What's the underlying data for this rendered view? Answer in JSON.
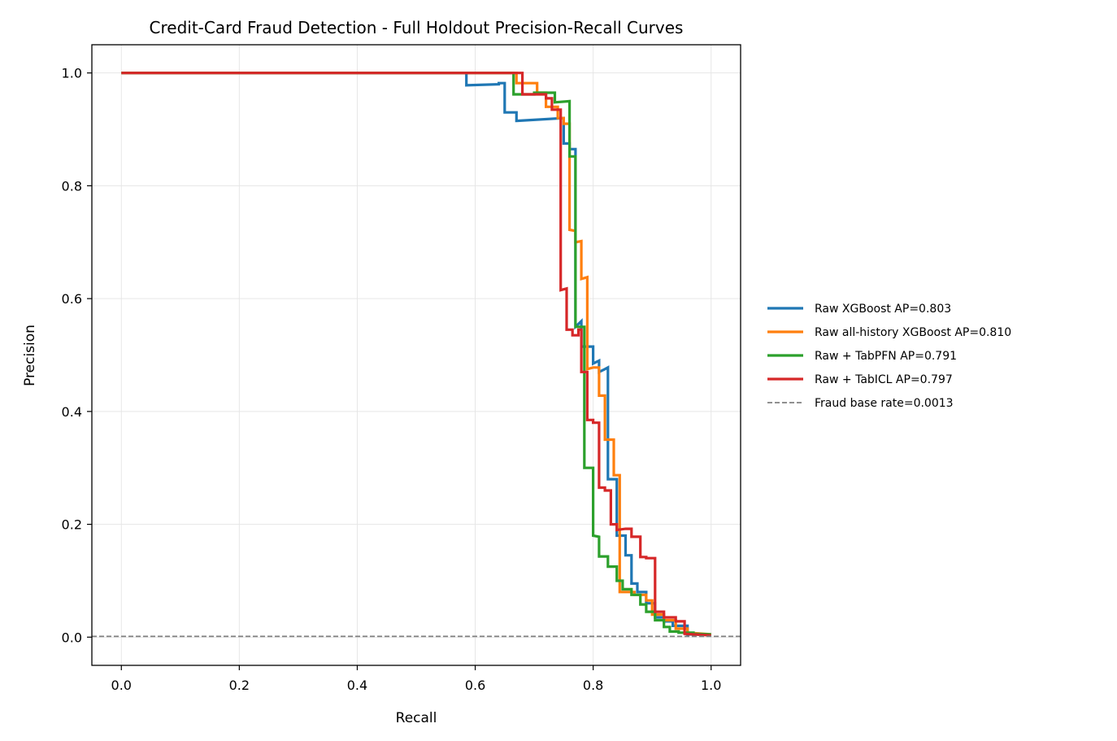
{
  "chart_data": {
    "type": "line",
    "title": "Credit-Card Fraud Detection - Full Holdout Precision-Recall Curves",
    "xlabel": "Recall",
    "ylabel": "Precision",
    "xlim": [
      -0.05,
      1.05
    ],
    "ylim": [
      -0.05,
      1.05
    ],
    "xticks": [
      0.0,
      0.2,
      0.4,
      0.6,
      0.8,
      1.0
    ],
    "yticks": [
      0.0,
      0.2,
      0.4,
      0.6,
      0.8,
      1.0
    ],
    "xtick_labels": [
      "0.0",
      "0.2",
      "0.4",
      "0.6",
      "0.8",
      "1.0"
    ],
    "ytick_labels": [
      "0.0",
      "0.2",
      "0.4",
      "0.6",
      "0.8",
      "1.0"
    ],
    "grid": true,
    "legend_position": "outside-right",
    "series": [
      {
        "name": "Raw XGBoost AP=0.803",
        "color": "#1f77b4",
        "points": [
          [
            0,
            1.0
          ],
          [
            0.585,
            1.0
          ],
          [
            0.585,
            0.978
          ],
          [
            0.64,
            0.98
          ],
          [
            0.64,
            0.982
          ],
          [
            0.65,
            0.982
          ],
          [
            0.65,
            0.93
          ],
          [
            0.67,
            0.93
          ],
          [
            0.67,
            0.915
          ],
          [
            0.75,
            0.92
          ],
          [
            0.75,
            0.875
          ],
          [
            0.76,
            0.875
          ],
          [
            0.76,
            0.865
          ],
          [
            0.77,
            0.865
          ],
          [
            0.77,
            0.55
          ],
          [
            0.78,
            0.56
          ],
          [
            0.78,
            0.515
          ],
          [
            0.8,
            0.515
          ],
          [
            0.8,
            0.485
          ],
          [
            0.81,
            0.49
          ],
          [
            0.81,
            0.47
          ],
          [
            0.82,
            0.475
          ],
          [
            0.825,
            0.478
          ],
          [
            0.825,
            0.28
          ],
          [
            0.84,
            0.28
          ],
          [
            0.84,
            0.18
          ],
          [
            0.855,
            0.18
          ],
          [
            0.855,
            0.145
          ],
          [
            0.865,
            0.145
          ],
          [
            0.865,
            0.095
          ],
          [
            0.875,
            0.095
          ],
          [
            0.875,
            0.08
          ],
          [
            0.89,
            0.08
          ],
          [
            0.89,
            0.06
          ],
          [
            0.905,
            0.06
          ],
          [
            0.905,
            0.035
          ],
          [
            0.92,
            0.035
          ],
          [
            0.92,
            0.028
          ],
          [
            0.935,
            0.028
          ],
          [
            0.935,
            0.02
          ],
          [
            0.96,
            0.02
          ],
          [
            0.96,
            0.005
          ],
          [
            1.0,
            0.004
          ]
        ]
      },
      {
        "name": "Raw all-history XGBoost AP=0.810",
        "color": "#ff7f0e",
        "points": [
          [
            0,
            1.0
          ],
          [
            0.67,
            1.0
          ],
          [
            0.67,
            0.982
          ],
          [
            0.705,
            0.982
          ],
          [
            0.705,
            0.965
          ],
          [
            0.72,
            0.965
          ],
          [
            0.72,
            0.94
          ],
          [
            0.74,
            0.94
          ],
          [
            0.74,
            0.92
          ],
          [
            0.75,
            0.92
          ],
          [
            0.75,
            0.91
          ],
          [
            0.76,
            0.91
          ],
          [
            0.76,
            0.722
          ],
          [
            0.77,
            0.72
          ],
          [
            0.77,
            0.7
          ],
          [
            0.78,
            0.702
          ],
          [
            0.78,
            0.635
          ],
          [
            0.79,
            0.638
          ],
          [
            0.79,
            0.475
          ],
          [
            0.8,
            0.478
          ],
          [
            0.81,
            0.478
          ],
          [
            0.81,
            0.428
          ],
          [
            0.82,
            0.428
          ],
          [
            0.82,
            0.35
          ],
          [
            0.835,
            0.35
          ],
          [
            0.835,
            0.287
          ],
          [
            0.845,
            0.287
          ],
          [
            0.845,
            0.08
          ],
          [
            0.87,
            0.08
          ],
          [
            0.87,
            0.075
          ],
          [
            0.89,
            0.075
          ],
          [
            0.89,
            0.065
          ],
          [
            0.9,
            0.065
          ],
          [
            0.9,
            0.04
          ],
          [
            0.92,
            0.04
          ],
          [
            0.92,
            0.03
          ],
          [
            0.94,
            0.03
          ],
          [
            0.94,
            0.015
          ],
          [
            0.96,
            0.015
          ],
          [
            0.96,
            0.008
          ],
          [
            1.0,
            0.005
          ]
        ]
      },
      {
        "name": "Raw + TabPFN AP=0.791",
        "color": "#2ca02c",
        "points": [
          [
            0,
            1.0
          ],
          [
            0.665,
            1.0
          ],
          [
            0.665,
            0.962
          ],
          [
            0.7,
            0.962
          ],
          [
            0.7,
            0.965
          ],
          [
            0.735,
            0.965
          ],
          [
            0.735,
            0.948
          ],
          [
            0.76,
            0.95
          ],
          [
            0.76,
            0.852
          ],
          [
            0.77,
            0.852
          ],
          [
            0.77,
            0.55
          ],
          [
            0.785,
            0.55
          ],
          [
            0.785,
            0.3
          ],
          [
            0.8,
            0.3
          ],
          [
            0.8,
            0.18
          ],
          [
            0.81,
            0.178
          ],
          [
            0.81,
            0.143
          ],
          [
            0.825,
            0.143
          ],
          [
            0.825,
            0.125
          ],
          [
            0.84,
            0.125
          ],
          [
            0.84,
            0.1
          ],
          [
            0.85,
            0.1
          ],
          [
            0.85,
            0.085
          ],
          [
            0.865,
            0.085
          ],
          [
            0.865,
            0.075
          ],
          [
            0.88,
            0.075
          ],
          [
            0.88,
            0.058
          ],
          [
            0.89,
            0.058
          ],
          [
            0.89,
            0.045
          ],
          [
            0.905,
            0.045
          ],
          [
            0.905,
            0.03
          ],
          [
            0.92,
            0.03
          ],
          [
            0.92,
            0.018
          ],
          [
            0.93,
            0.018
          ],
          [
            0.93,
            0.01
          ],
          [
            0.945,
            0.01
          ],
          [
            0.945,
            0.008
          ],
          [
            0.97,
            0.008
          ],
          [
            0.97,
            0.006
          ],
          [
            1.0,
            0.005
          ]
        ]
      },
      {
        "name": "Raw + TabICL AP=0.797",
        "color": "#d62728",
        "points": [
          [
            0,
            1.0
          ],
          [
            0.68,
            1.0
          ],
          [
            0.68,
            0.962
          ],
          [
            0.72,
            0.962
          ],
          [
            0.72,
            0.955
          ],
          [
            0.73,
            0.955
          ],
          [
            0.73,
            0.935
          ],
          [
            0.745,
            0.935
          ],
          [
            0.745,
            0.615
          ],
          [
            0.755,
            0.618
          ],
          [
            0.755,
            0.545
          ],
          [
            0.765,
            0.545
          ],
          [
            0.765,
            0.535
          ],
          [
            0.775,
            0.535
          ],
          [
            0.775,
            0.545
          ],
          [
            0.78,
            0.545
          ],
          [
            0.78,
            0.47
          ],
          [
            0.79,
            0.47
          ],
          [
            0.79,
            0.385
          ],
          [
            0.8,
            0.385
          ],
          [
            0.8,
            0.38
          ],
          [
            0.81,
            0.38
          ],
          [
            0.81,
            0.265
          ],
          [
            0.82,
            0.265
          ],
          [
            0.82,
            0.26
          ],
          [
            0.83,
            0.26
          ],
          [
            0.83,
            0.2
          ],
          [
            0.84,
            0.2
          ],
          [
            0.84,
            0.19
          ],
          [
            0.855,
            0.192
          ],
          [
            0.865,
            0.192
          ],
          [
            0.865,
            0.178
          ],
          [
            0.88,
            0.178
          ],
          [
            0.88,
            0.142
          ],
          [
            0.89,
            0.142
          ],
          [
            0.89,
            0.14
          ],
          [
            0.905,
            0.14
          ],
          [
            0.905,
            0.045
          ],
          [
            0.92,
            0.045
          ],
          [
            0.92,
            0.035
          ],
          [
            0.94,
            0.035
          ],
          [
            0.94,
            0.028
          ],
          [
            0.955,
            0.028
          ],
          [
            0.955,
            0.006
          ],
          [
            1.0,
            0.003
          ]
        ]
      },
      {
        "name": "Fraud base rate=0.0013",
        "color": "#808080",
        "dashed": true,
        "points": [
          [
            -0.05,
            0.0013
          ],
          [
            1.05,
            0.0013
          ]
        ]
      }
    ]
  }
}
